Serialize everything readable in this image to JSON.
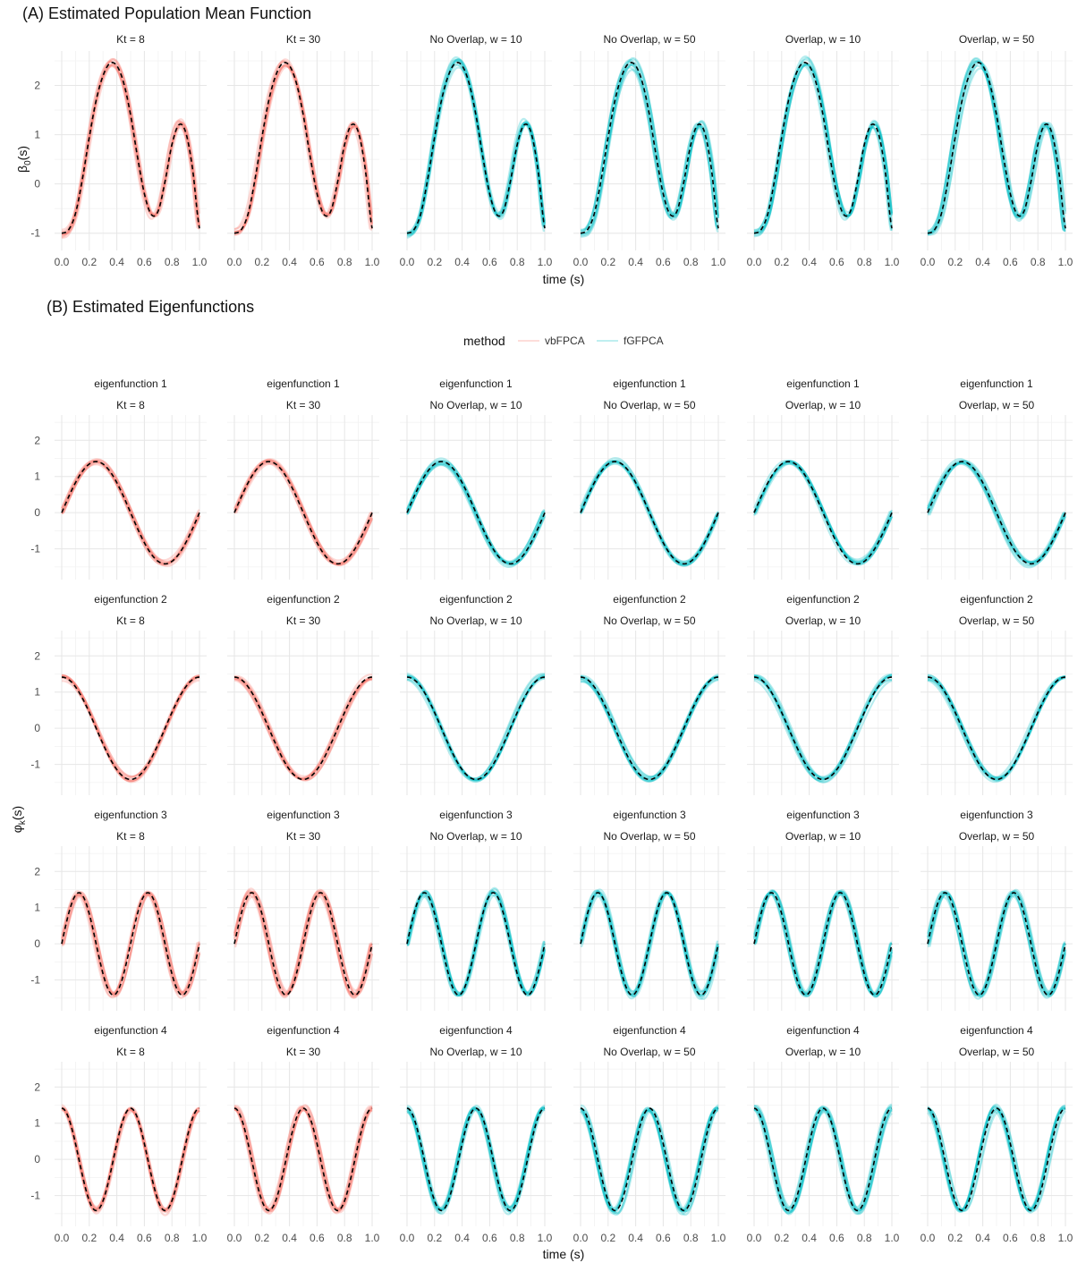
{
  "panel_a": {
    "title": "(A) Estimated Population Mean Function",
    "ylabel_base": "β",
    "ylabel_sub": "0",
    "ylabel_tail": "(s)",
    "xlabel": "time (s)"
  },
  "panel_b": {
    "title": "(B) Estimated Eigenfunctions",
    "ylabel_base": "φ",
    "ylabel_sub": "k",
    "ylabel_tail": "(s)",
    "xlabel": "time (s)"
  },
  "legend": {
    "title": "method",
    "items": [
      {
        "label": "vbFPCA",
        "color": "#F8766D"
      },
      {
        "label": "fGFPCA",
        "color": "#00BFC4"
      }
    ]
  },
  "colors": {
    "truth": "#000000",
    "vbFPCA": "#F8766D",
    "fGFPCA": "#00BFC4"
  },
  "chart_data": [
    {
      "type": "line",
      "title": "(A) Estimated Population Mean Function",
      "xlabel": "time (s)",
      "ylabel": "β0(s)",
      "xlim": [
        0,
        1
      ],
      "ylim": [
        -1.35,
        2.7
      ],
      "xticks": [
        "0.0",
        "0.2",
        "0.4",
        "0.6",
        "0.8",
        "1.0"
      ],
      "yticks": [
        "-1",
        "0",
        "1",
        "2"
      ],
      "facets": [
        {
          "label": "Kt = 8",
          "method": "vbFPCA"
        },
        {
          "label": "Kt = 30",
          "method": "vbFPCA"
        },
        {
          "label": "No Overlap, w = 10",
          "method": "fGFPCA"
        },
        {
          "label": "No Overlap, w = 50",
          "method": "fGFPCA"
        },
        {
          "label": "Overlap, w = 10",
          "method": "fGFPCA"
        },
        {
          "label": "Overlap, w = 50",
          "method": "fGFPCA"
        }
      ],
      "truth": {
        "x": [
          0,
          0.05,
          0.1,
          0.15,
          0.2,
          0.25,
          0.3,
          0.35,
          0.4,
          0.45,
          0.5,
          0.55,
          0.6,
          0.65,
          0.7,
          0.75,
          0.8,
          0.85,
          0.9,
          0.95,
          1.0
        ],
        "y": [
          -1.0,
          -0.93,
          -0.6,
          0.1,
          0.95,
          1.7,
          2.2,
          2.45,
          2.4,
          2.05,
          1.4,
          0.55,
          -0.2,
          -0.62,
          -0.55,
          0.05,
          0.8,
          1.2,
          1.05,
          0.3,
          -0.9
        ]
      }
    },
    {
      "type": "line",
      "title": "(B) Estimated Eigenfunctions",
      "xlabel": "time (s)",
      "ylabel": "φk(s)",
      "xlim": [
        0,
        1
      ],
      "ylim": [
        -1.85,
        2.7
      ],
      "xticks": [
        "0.0",
        "0.2",
        "0.4",
        "0.6",
        "0.8",
        "1.0"
      ],
      "yticks": [
        "-1",
        "0",
        "1",
        "2"
      ],
      "facet_cols": [
        {
          "label": "Kt = 8",
          "method": "vbFPCA"
        },
        {
          "label": "Kt = 30",
          "method": "vbFPCA"
        },
        {
          "label": "No Overlap, w = 10",
          "method": "fGFPCA"
        },
        {
          "label": "No Overlap, w = 50",
          "method": "fGFPCA"
        },
        {
          "label": "Overlap, w = 10",
          "method": "fGFPCA"
        },
        {
          "label": "Overlap, w = 50",
          "method": "fGFPCA"
        }
      ],
      "facet_rows": [
        {
          "label": "eigenfunction 1",
          "truth": "√2·sin(2πs)"
        },
        {
          "label": "eigenfunction 2",
          "truth": "√2·cos(2πs)"
        },
        {
          "label": "eigenfunction 3",
          "truth": "√2·sin(4πs)"
        },
        {
          "label": "eigenfunction 4",
          "truth": "√2·cos(4πs)"
        }
      ]
    }
  ]
}
